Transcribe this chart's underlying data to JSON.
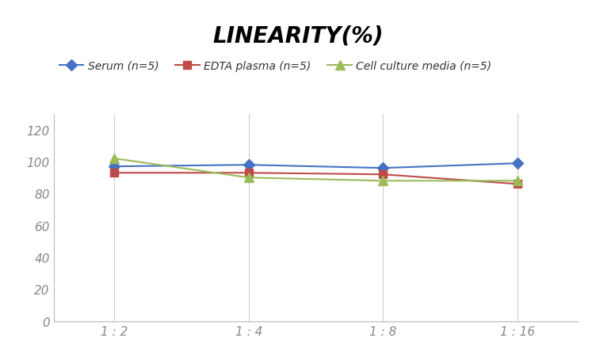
{
  "title": "LINEARITY(%)",
  "x_labels": [
    "1 : 2",
    "1 : 4",
    "1 : 8",
    "1 : 16"
  ],
  "x_positions": [
    0,
    1,
    2,
    3
  ],
  "series": [
    {
      "label": "Serum (n=5)",
      "values": [
        97,
        98,
        96,
        99
      ],
      "color": "#4472C4",
      "marker": "D",
      "markersize": 7,
      "linewidth": 1.5
    },
    {
      "label": "EDTA plasma (n=5)",
      "values": [
        93,
        93,
        92,
        86
      ],
      "color": "#BE4B48",
      "marker": "s",
      "markersize": 7,
      "linewidth": 1.5
    },
    {
      "label": "Cell culture media (n=5)",
      "values": [
        102,
        90,
        88,
        88
      ],
      "color": "#9BBB59",
      "marker": "^",
      "markersize": 9,
      "linewidth": 1.5
    }
  ],
  "ylim": [
    0,
    130
  ],
  "yticks": [
    0,
    20,
    40,
    60,
    80,
    100,
    120
  ],
  "grid_color": "#D0D0D0",
  "background_color": "#FFFFFF",
  "title_fontsize": 20,
  "title_fontstyle": "italic",
  "title_fontweight": "bold",
  "legend_fontsize": 10,
  "tick_fontsize": 11,
  "tick_color": "#888888"
}
